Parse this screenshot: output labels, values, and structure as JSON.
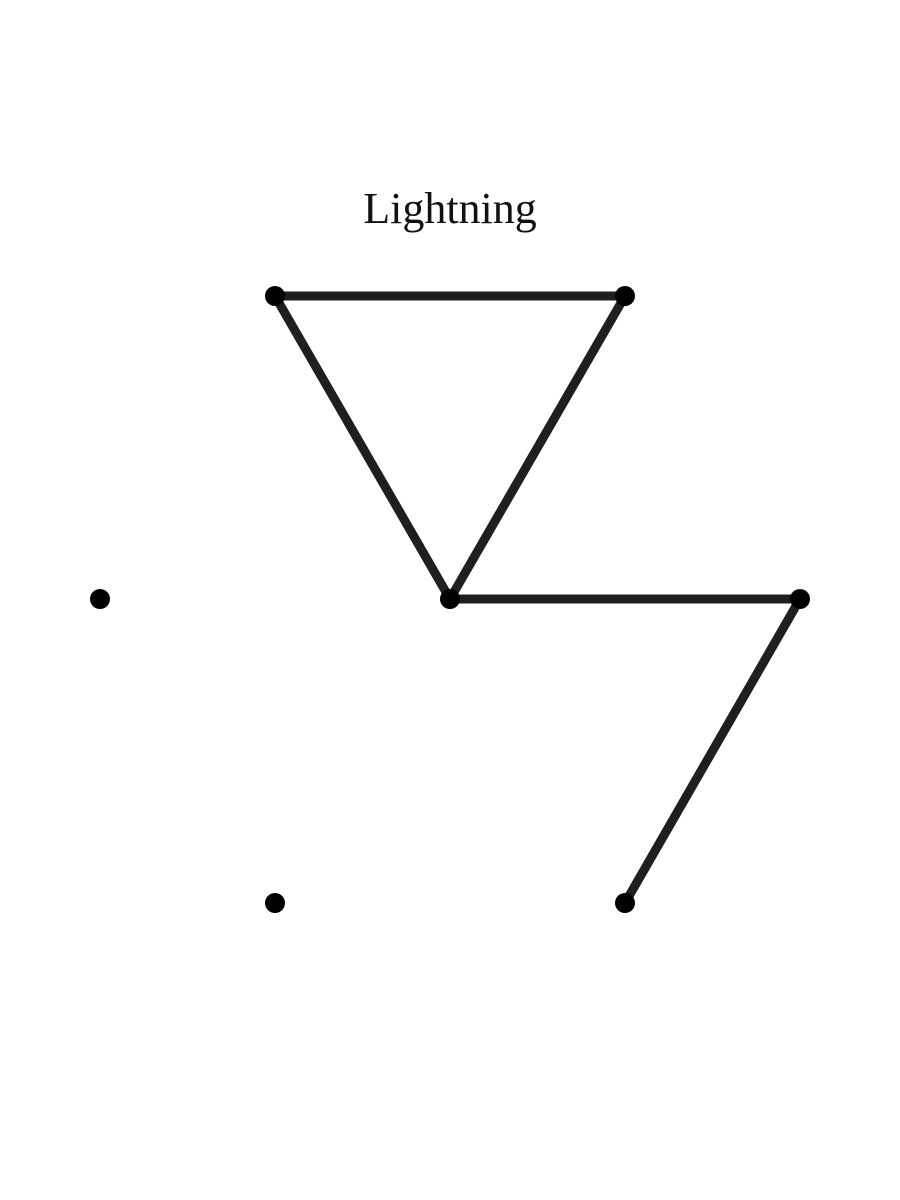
{
  "title": "Lightning",
  "colors": {
    "background": "#ffffff",
    "edge": "#1f1f1f",
    "dot": "#000000"
  },
  "dots": [
    {
      "id": "top-left"
    },
    {
      "id": "top-right"
    },
    {
      "id": "far-left"
    },
    {
      "id": "center"
    },
    {
      "id": "far-right"
    },
    {
      "id": "bottom-left"
    },
    {
      "id": "bottom-right"
    }
  ],
  "edges": [
    {
      "from": "top-left",
      "to": "top-right"
    },
    {
      "from": "top-left",
      "to": "center"
    },
    {
      "from": "top-right",
      "to": "center"
    },
    {
      "from": "center",
      "to": "far-right"
    },
    {
      "from": "far-right",
      "to": "bottom-right"
    }
  ]
}
